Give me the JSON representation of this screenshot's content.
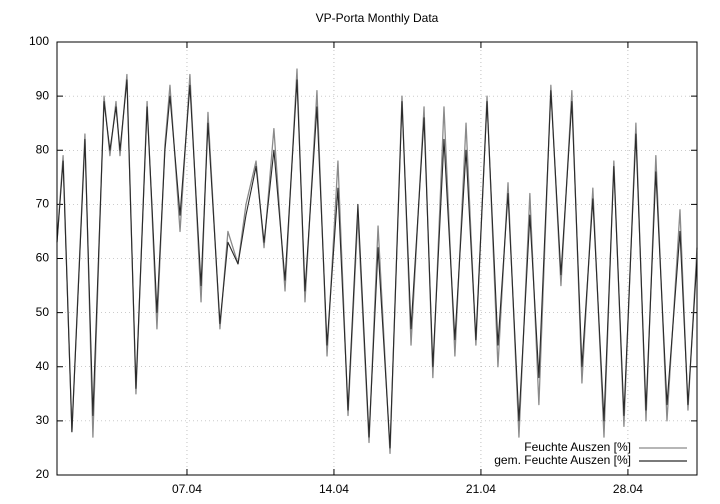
{
  "chart_data": {
    "type": "line",
    "title": "VP-Porta Monthly Data",
    "x": [
      0.81,
      1.1,
      1.52,
      2.14,
      2.52,
      3.05,
      3.33,
      3.62,
      3.81,
      4.14,
      4.57,
      5.1,
      5.33,
      5.57,
      5.95,
      6.19,
      6.67,
      7.14,
      7.67,
      8.0,
      8.57,
      8.95,
      9.43,
      9.81,
      10.29,
      10.67,
      11.14,
      11.67,
      12.24,
      12.62,
      13.19,
      13.67,
      14.19,
      14.67,
      15.14,
      15.67,
      16.1,
      16.67,
      17.24,
      17.67,
      18.29,
      18.71,
      19.24,
      19.76,
      20.29,
      20.76,
      21.29,
      21.81,
      22.29,
      22.81,
      23.33,
      23.76,
      24.33,
      24.81,
      25.33,
      25.81,
      26.33,
      26.86,
      27.33,
      27.81,
      28.38,
      28.86,
      29.33,
      29.86,
      30.48,
      30.86,
      31.29
    ],
    "series": [
      {
        "name": "Feuchte Auszen [%]",
        "color": "#8a8a8a",
        "values": [
          63,
          79,
          28,
          83,
          27,
          90,
          79,
          89,
          79,
          94,
          35,
          89,
          69,
          47,
          81,
          92,
          65,
          94,
          52,
          87,
          47,
          65,
          59,
          70,
          78,
          62,
          84,
          54,
          95,
          52,
          91,
          42,
          78,
          31,
          68,
          26,
          66,
          24,
          90,
          44,
          88,
          38,
          88,
          42,
          85,
          44,
          90,
          40,
          74,
          27,
          72,
          33,
          92,
          55,
          91,
          37,
          73,
          27,
          78,
          29,
          85,
          30,
          79,
          30,
          69,
          32,
          62
        ]
      },
      {
        "name": "gem. Feuchte Auszen [%]",
        "color": "#2a2a2a",
        "values": [
          63,
          78,
          28,
          82,
          31,
          89,
          80,
          88,
          80,
          93,
          36,
          88,
          70,
          50,
          80,
          90,
          68,
          92,
          55,
          85,
          48,
          63,
          59,
          68,
          77,
          63,
          80,
          56,
          93,
          54,
          88,
          44,
          73,
          32,
          70,
          27,
          62,
          25,
          89,
          47,
          86,
          40,
          82,
          45,
          80,
          45,
          89,
          44,
          72,
          30,
          68,
          38,
          91,
          57,
          89,
          40,
          71,
          30,
          77,
          31,
          83,
          32,
          76,
          33,
          65,
          33,
          60
        ]
      }
    ],
    "xlim": [
      0.81,
      31.29
    ],
    "xticks": [
      {
        "value": 7,
        "label": "07.04"
      },
      {
        "value": 14,
        "label": "14.04"
      },
      {
        "value": 21,
        "label": "21.04"
      },
      {
        "value": 28,
        "label": "28.04"
      }
    ],
    "ylim": [
      20,
      100
    ],
    "yticks": [
      20,
      30,
      40,
      50,
      60,
      70,
      80,
      90,
      100
    ],
    "grid": true,
    "legend": "bottom-right"
  }
}
